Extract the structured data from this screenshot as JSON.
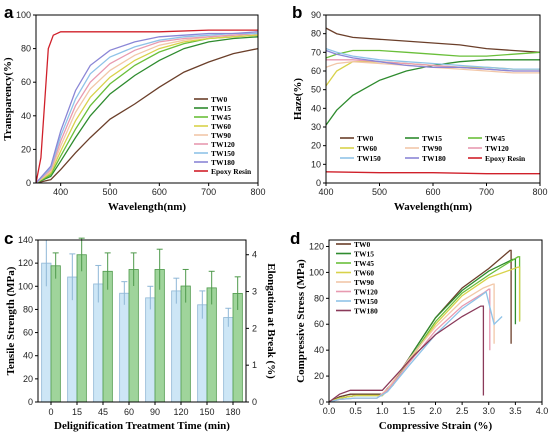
{
  "chart_data": [
    {
      "panel": "a",
      "type": "line",
      "xlabel": "Wavelength(nm)",
      "ylabel": "Transparency(%)",
      "xlim": [
        350,
        800
      ],
      "ylim": [
        0,
        100
      ],
      "xticks": [
        400,
        500,
        600,
        700,
        800
      ],
      "yticks": [
        0,
        20,
        40,
        60,
        80,
        100
      ],
      "legend_position": "bottom-right",
      "series": [
        {
          "name": "TW0",
          "color": "#6b3f2a",
          "x": [
            350,
            380,
            400,
            430,
            460,
            500,
            550,
            600,
            650,
            700,
            750,
            800
          ],
          "y": [
            0,
            2,
            8,
            18,
            27,
            38,
            47,
            57,
            66,
            72,
            77,
            80
          ]
        },
        {
          "name": "TW15",
          "color": "#2e8b2e",
          "x": [
            350,
            380,
            400,
            430,
            460,
            500,
            550,
            600,
            650,
            700,
            750,
            800
          ],
          "y": [
            0,
            4,
            13,
            27,
            40,
            53,
            64,
            73,
            80,
            84,
            86,
            87
          ]
        },
        {
          "name": "TW45",
          "color": "#6abf3a",
          "x": [
            350,
            380,
            400,
            430,
            460,
            500,
            550,
            600,
            650,
            700,
            750,
            800
          ],
          "y": [
            0,
            5,
            16,
            32,
            46,
            59,
            70,
            78,
            83,
            86,
            87,
            88
          ]
        },
        {
          "name": "TW60",
          "color": "#d8d24a",
          "x": [
            350,
            380,
            400,
            430,
            460,
            500,
            550,
            600,
            650,
            700,
            750,
            800
          ],
          "y": [
            0,
            6,
            19,
            37,
            51,
            63,
            73,
            80,
            84,
            86,
            87,
            88
          ]
        },
        {
          "name": "TW90",
          "color": "#f2c7a8",
          "x": [
            350,
            380,
            400,
            430,
            460,
            500,
            550,
            600,
            650,
            700,
            750,
            800
          ],
          "y": [
            0,
            7,
            22,
            42,
            56,
            67,
            76,
            82,
            85,
            87,
            88,
            89
          ]
        },
        {
          "name": "TW120",
          "color": "#e89ab0",
          "x": [
            350,
            380,
            400,
            430,
            460,
            500,
            550,
            600,
            650,
            700,
            750,
            800
          ],
          "y": [
            0,
            8,
            25,
            46,
            60,
            71,
            79,
            84,
            86,
            87,
            88,
            89
          ]
        },
        {
          "name": "TW150",
          "color": "#8fc3e8",
          "x": [
            350,
            380,
            400,
            430,
            460,
            500,
            550,
            600,
            650,
            700,
            750,
            800
          ],
          "y": [
            0,
            9,
            28,
            50,
            65,
            75,
            81,
            85,
            87,
            88,
            89,
            89
          ]
        },
        {
          "name": "TW180",
          "color": "#8a86d6",
          "x": [
            350,
            380,
            400,
            430,
            460,
            500,
            550,
            600,
            650,
            700,
            750,
            800
          ],
          "y": [
            0,
            10,
            31,
            55,
            70,
            79,
            84,
            87,
            88,
            89,
            89,
            90
          ]
        },
        {
          "name": "Epoxy Resin",
          "color": "#d0202a",
          "x": [
            350,
            360,
            368,
            375,
            385,
            400,
            450,
            500,
            600,
            700,
            800
          ],
          "y": [
            0,
            15,
            50,
            80,
            88,
            90,
            90,
            90,
            90,
            91,
            91
          ]
        }
      ]
    },
    {
      "panel": "b",
      "type": "line",
      "xlabel": "Wavelength(nm)",
      "ylabel": "Haze(%)",
      "xlim": [
        400,
        800
      ],
      "ylim": [
        0,
        90
      ],
      "xticks": [
        400,
        500,
        600,
        700,
        800
      ],
      "yticks": [
        0,
        10,
        20,
        30,
        40,
        50,
        60,
        70,
        80,
        90
      ],
      "legend_position": "lower-center",
      "series": [
        {
          "name": "TW0",
          "color": "#6b3f2a",
          "x": [
            400,
            420,
            450,
            500,
            550,
            600,
            650,
            700,
            750,
            800
          ],
          "y": [
            83,
            80,
            78,
            77,
            76,
            75,
            74,
            72,
            71,
            70
          ]
        },
        {
          "name": "TW15",
          "color": "#2e8b2e",
          "x": [
            400,
            420,
            450,
            500,
            550,
            600,
            650,
            700,
            750,
            800
          ],
          "y": [
            31,
            39,
            47,
            55,
            60,
            63,
            65,
            66,
            66,
            66
          ]
        },
        {
          "name": "TW45",
          "color": "#6abf3a",
          "x": [
            400,
            420,
            450,
            500,
            550,
            600,
            650,
            700,
            750,
            800
          ],
          "y": [
            67,
            69,
            71,
            71,
            70,
            69,
            68,
            68,
            69,
            70
          ]
        },
        {
          "name": "TW60",
          "color": "#d8d24a",
          "x": [
            400,
            420,
            450,
            500,
            550,
            600,
            650,
            700,
            750,
            800
          ],
          "y": [
            52,
            60,
            65,
            65,
            64,
            63,
            62,
            62,
            61,
            61
          ]
        },
        {
          "name": "TW90",
          "color": "#f2c7a8",
          "x": [
            400,
            420,
            450,
            500,
            550,
            600,
            650,
            700,
            750,
            800
          ],
          "y": [
            62,
            64,
            65,
            64,
            63,
            62,
            61,
            60,
            59,
            59
          ]
        },
        {
          "name": "TW120",
          "color": "#e89ab0",
          "x": [
            400,
            420,
            450,
            500,
            550,
            600,
            650,
            700,
            750,
            800
          ],
          "y": [
            66,
            66,
            66,
            65,
            64,
            63,
            62,
            61,
            60,
            60
          ]
        },
        {
          "name": "TW150",
          "color": "#8fc3e8",
          "x": [
            400,
            420,
            450,
            500,
            550,
            600,
            650,
            700,
            750,
            800
          ],
          "y": [
            72,
            70,
            68,
            66,
            65,
            64,
            63,
            62,
            61,
            61
          ]
        },
        {
          "name": "TW180",
          "color": "#8a86d6",
          "x": [
            400,
            420,
            450,
            500,
            550,
            600,
            650,
            700,
            750,
            800
          ],
          "y": [
            71,
            69,
            67,
            65,
            63,
            62,
            62,
            61,
            60,
            60
          ]
        },
        {
          "name": "Epoxy Resin",
          "color": "#d0202a",
          "x": [
            400,
            500,
            600,
            700,
            800
          ],
          "y": [
            6,
            5.5,
            5.5,
            5,
            5
          ]
        }
      ]
    },
    {
      "panel": "c",
      "type": "bar",
      "xlabel": "Delignification Treatment Time (min)",
      "ylabel": "Tensile Strength (MPa)",
      "y2label": "Elongation at Break (%)",
      "categories": [
        "0",
        "15",
        "45",
        "60",
        "90",
        "120",
        "150",
        "180"
      ],
      "ylim": [
        0,
        140
      ],
      "yticks": [
        0,
        20,
        40,
        60,
        80,
        100,
        120,
        140
      ],
      "y2lim": [
        0,
        4.4
      ],
      "y2ticks": [
        0,
        1,
        2,
        3,
        4
      ],
      "series": [
        {
          "name": "Tensile Strength",
          "axis": "left",
          "color": "#cde6f6",
          "edge": "#8fb7d6",
          "values": [
            120,
            108,
            102,
            94,
            90,
            96,
            84,
            73
          ],
          "errors": [
            20,
            20,
            16,
            10,
            10,
            11,
            12,
            8
          ]
        },
        {
          "name": "Elongation at Break",
          "axis": "right",
          "color": "#9fd49b",
          "edge": "#4f9a4b",
          "values": [
            3.7,
            4.0,
            3.55,
            3.6,
            3.6,
            3.15,
            3.1,
            2.95
          ],
          "errors": [
            0.35,
            0.45,
            0.5,
            0.45,
            0.55,
            0.45,
            0.45,
            0.45
          ]
        }
      ]
    },
    {
      "panel": "d",
      "type": "line",
      "xlabel": "Compressive Strain (%)",
      "ylabel": "Compressive Stress (MPa)",
      "xlim": [
        0,
        4
      ],
      "ylim": [
        0,
        125
      ],
      "xticks": [
        0.0,
        0.5,
        1.0,
        1.5,
        2.0,
        2.5,
        3.0,
        3.5,
        4.0
      ],
      "yticks": [
        0,
        20,
        40,
        60,
        80,
        100,
        120
      ],
      "legend_position": "top-left",
      "series": [
        {
          "name": "TW0",
          "color": "#6b3f2a",
          "x": [
            0,
            0.2,
            0.4,
            1.0,
            1.2,
            1.6,
            2.0,
            2.5,
            3.0,
            3.4,
            3.42,
            3.42
          ],
          "y": [
            0,
            4,
            6,
            6,
            15,
            40,
            65,
            88,
            103,
            117,
            117,
            45
          ]
        },
        {
          "name": "TW15",
          "color": "#2e8b2e",
          "x": [
            0,
            0.2,
            0.5,
            1.0,
            1.2,
            1.6,
            2.0,
            2.5,
            3.0,
            3.45,
            3.5,
            3.5
          ],
          "y": [
            0,
            3,
            5,
            5,
            14,
            40,
            65,
            86,
            101,
            110,
            110,
            60
          ]
        },
        {
          "name": "TW45",
          "color": "#6abf3a",
          "x": [
            0,
            0.2,
            0.5,
            1.0,
            1.2,
            1.6,
            2.0,
            2.5,
            3.0,
            3.55,
            3.58,
            3.58
          ],
          "y": [
            0,
            3,
            5,
            5,
            13,
            38,
            62,
            84,
            98,
            112,
            112,
            63
          ]
        },
        {
          "name": "TW60",
          "color": "#d8d24a",
          "x": [
            0,
            0.2,
            0.5,
            1.0,
            1.2,
            1.6,
            2.0,
            2.5,
            3.0,
            3.55,
            3.58,
            3.58
          ],
          "y": [
            0,
            3,
            5,
            5,
            13,
            37,
            60,
            82,
            96,
            104,
            104,
            62
          ]
        },
        {
          "name": "TW90",
          "color": "#f2c7a8",
          "x": [
            0,
            0.2,
            0.5,
            0.9,
            1.1,
            1.5,
            2.0,
            2.5,
            2.9,
            3.08,
            3.1,
            3.1
          ],
          "y": [
            0,
            2,
            3,
            3,
            10,
            33,
            58,
            78,
            88,
            91,
            91,
            45
          ]
        },
        {
          "name": "TW120",
          "color": "#e89ab0",
          "x": [
            0,
            0.2,
            0.5,
            0.9,
            1.1,
            1.5,
            2.0,
            2.5,
            2.9,
            3.0,
            3.02,
            3.02
          ],
          "y": [
            0,
            2,
            3,
            3,
            9,
            30,
            55,
            74,
            84,
            87,
            87,
            40
          ]
        },
        {
          "name": "TW150",
          "color": "#8fc3e8",
          "x": [
            0,
            0.2,
            0.5,
            0.9,
            1.1,
            1.5,
            2.0,
            2.5,
            2.85,
            2.95,
            3.1,
            3.2,
            3.25
          ],
          "y": [
            0,
            2,
            3,
            3,
            8,
            28,
            52,
            72,
            82,
            85,
            60,
            64,
            66
          ]
        },
        {
          "name": "TW180",
          "color": "#8a3a5a",
          "x": [
            0,
            0.2,
            0.4,
            1.0,
            1.2,
            1.6,
            2.0,
            2.5,
            2.85,
            2.9,
            2.9
          ],
          "y": [
            0,
            6,
            9,
            9,
            18,
            36,
            52,
            66,
            74,
            74,
            5
          ]
        }
      ]
    }
  ]
}
